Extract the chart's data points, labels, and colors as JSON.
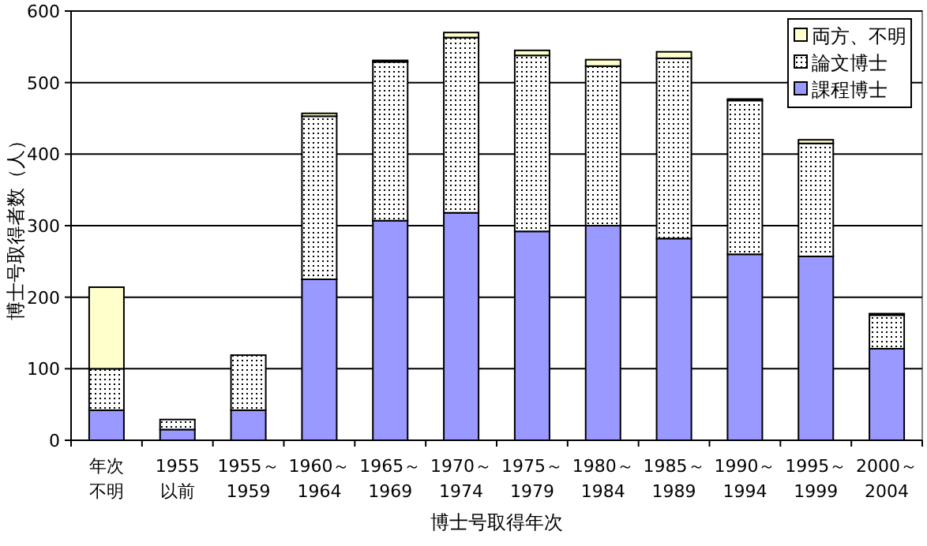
{
  "chart_data": {
    "type": "bar",
    "stacked": true,
    "xlabel": "博士号取得年次",
    "ylabel": "博士号取得者数（人）",
    "categories": [
      "年次不明",
      "1955以前",
      "1955～\n1959",
      "1960～\n1964",
      "1965～\n1969",
      "1970～\n1974",
      "1975～\n1979",
      "1980～\n1984",
      "1985～\n1989",
      "1990～\n1994",
      "1995～\n1999",
      "2000～\n2004"
    ],
    "series": [
      {
        "name": "課程博士",
        "color": "#9999ff",
        "values": [
          42,
          15,
          42,
          225,
          307,
          318,
          292,
          300,
          282,
          260,
          257,
          128
        ]
      },
      {
        "name": "論文博士",
        "color": "#ffffff",
        "values": [
          58,
          14,
          77,
          228,
          222,
          245,
          246,
          223,
          252,
          215,
          158,
          47
        ]
      },
      {
        "name": "両方、不明",
        "color": "#ffffcc",
        "values": [
          114,
          0,
          0,
          4,
          2,
          7,
          7,
          9,
          9,
          2,
          5,
          2
        ]
      }
    ],
    "ylim": [
      0,
      600
    ],
    "yticks": [
      0,
      100,
      200,
      300,
      400,
      500,
      600
    ],
    "grid": "y",
    "legend": "top right"
  }
}
